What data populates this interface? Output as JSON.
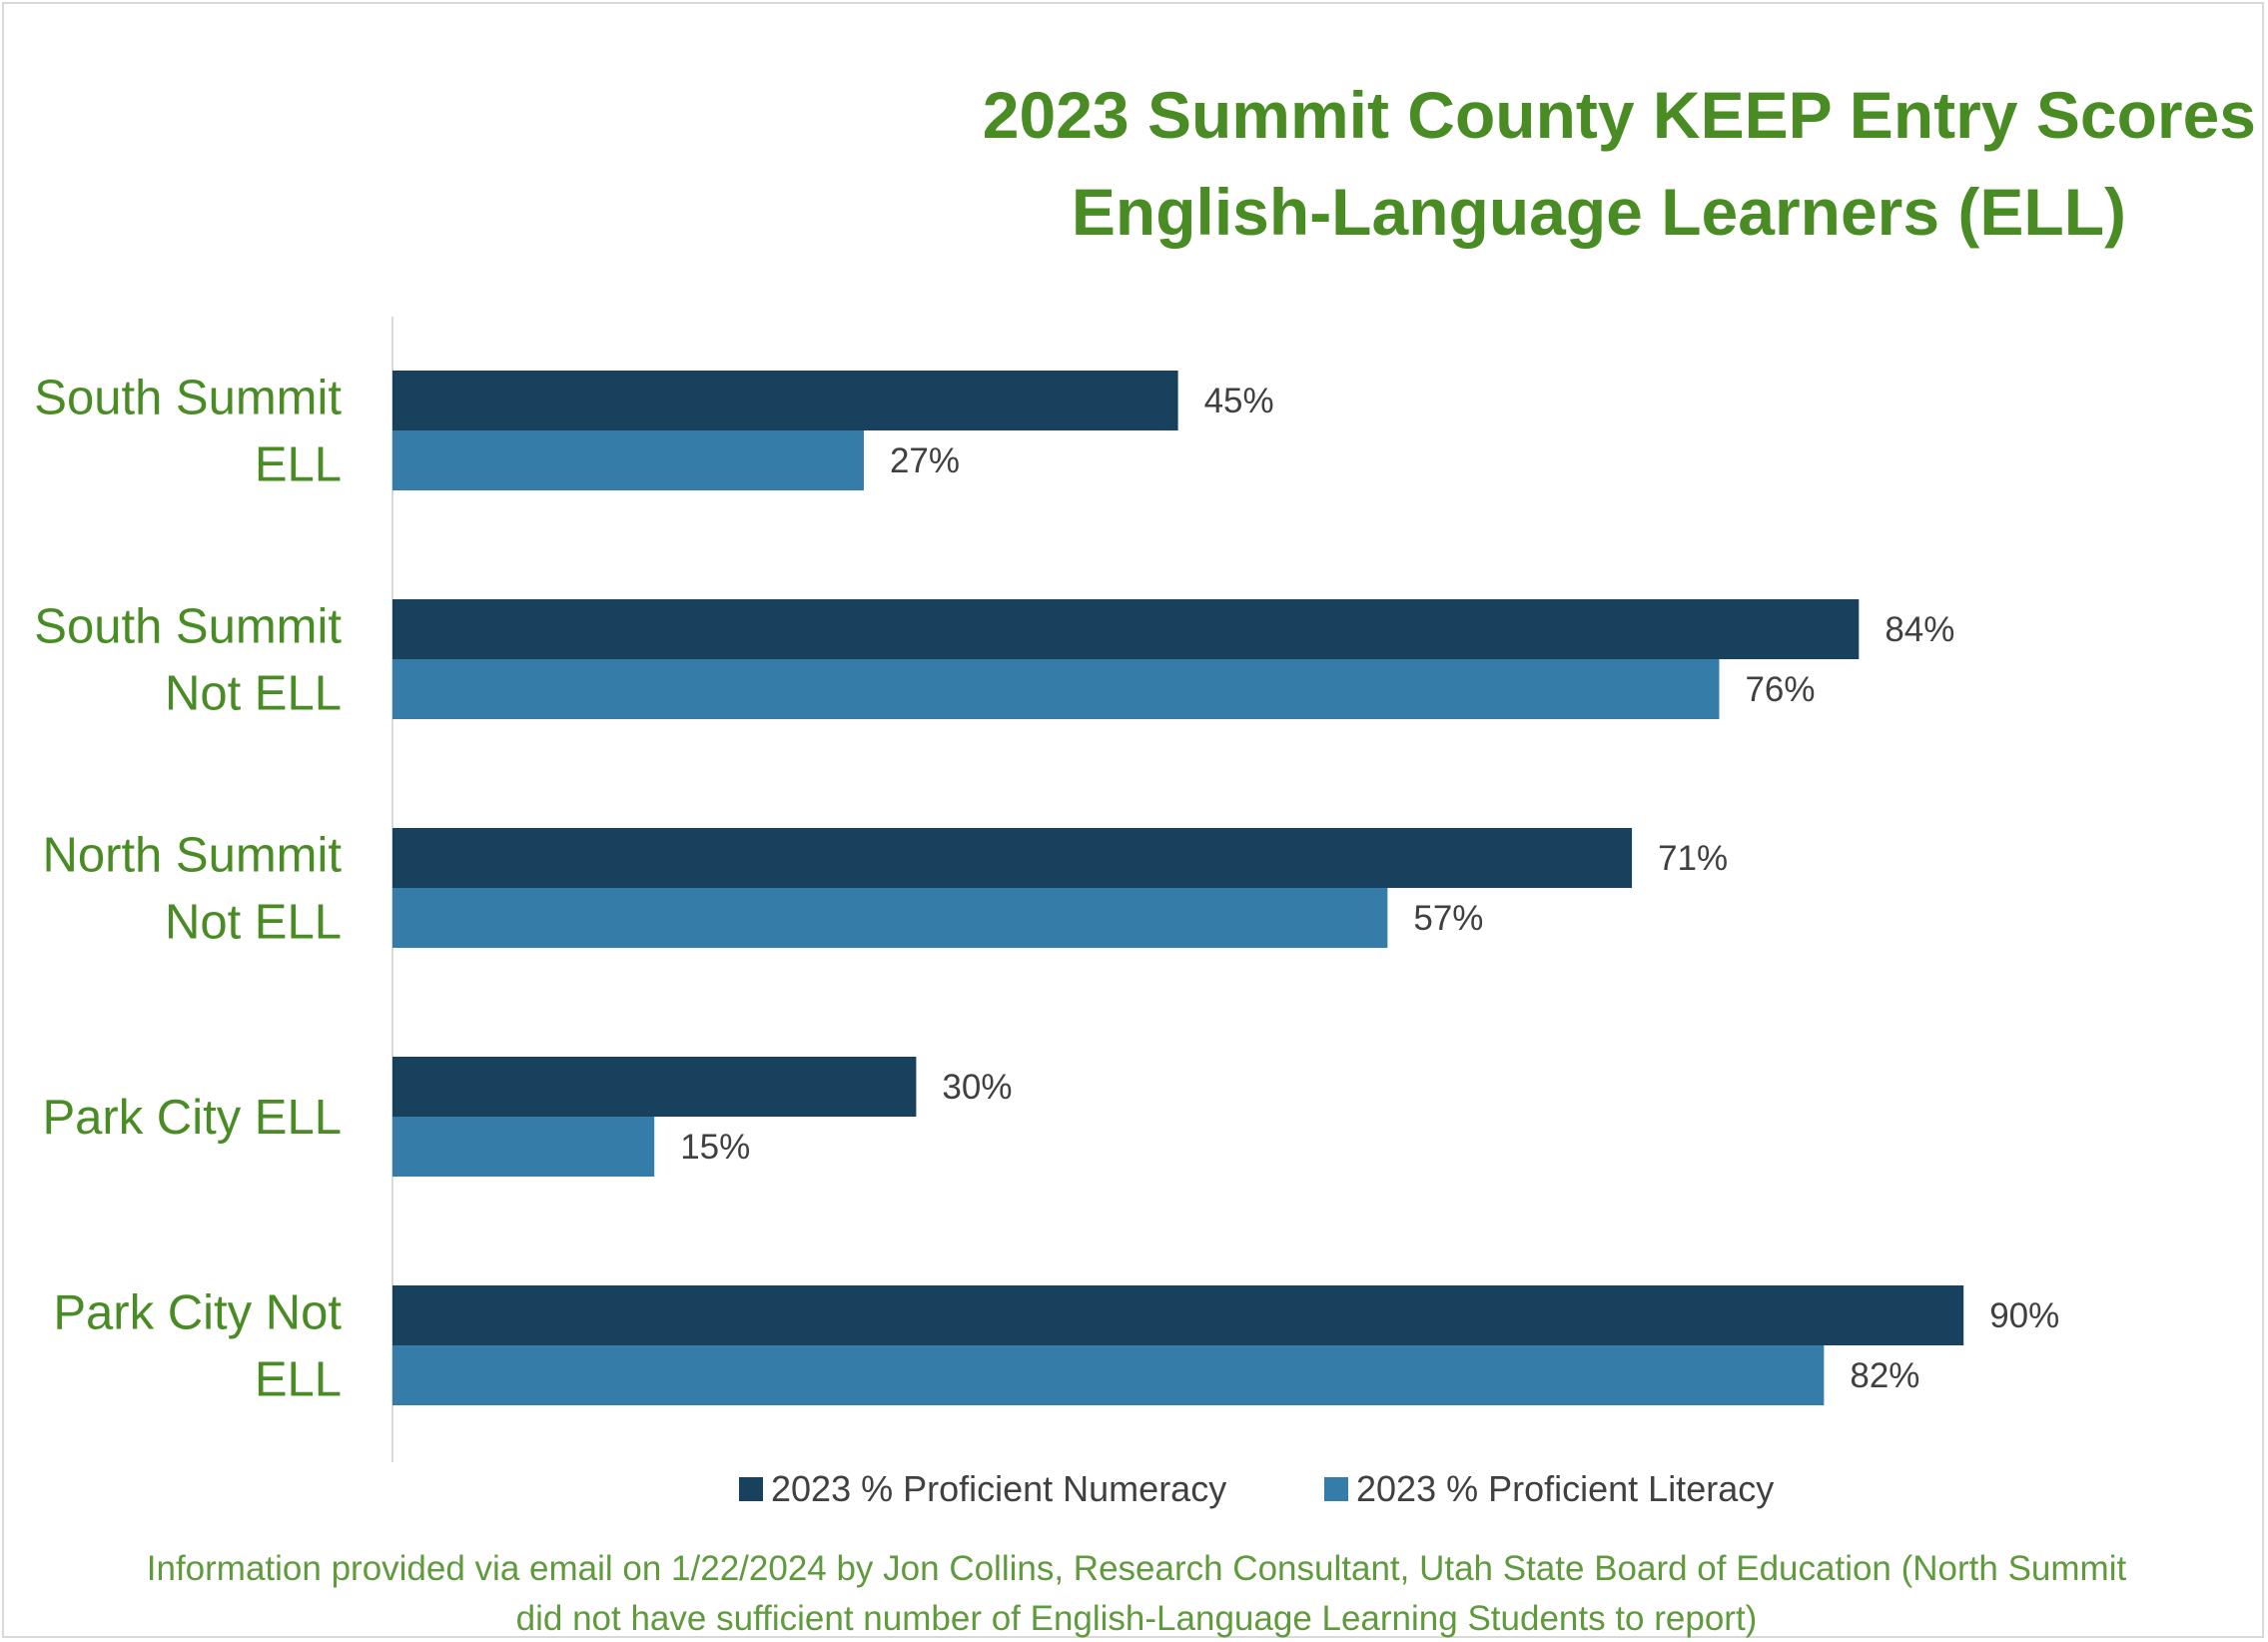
{
  "chart_data": {
    "type": "bar",
    "orientation": "horizontal",
    "title": "2023 Summit County KEEP Entry Scores",
    "subtitle": "English-Language Learners (ELL)",
    "categories": [
      [
        "South Summit",
        "ELL"
      ],
      [
        "South Summit",
        "Not ELL"
      ],
      [
        "North Summit",
        "Not ELL"
      ],
      [
        "Park City ELL"
      ],
      [
        "Park City Not",
        "ELL"
      ]
    ],
    "series": [
      {
        "name": "2023 % Proficient Numeracy",
        "color": "#17415c",
        "values": [
          45,
          84,
          71,
          30,
          90
        ],
        "labels": [
          "45%",
          "84%",
          "71%",
          "30%",
          "90%"
        ]
      },
      {
        "name": "2023 % Proficient Literacy",
        "color": "#357ca8",
        "values": [
          27,
          76,
          57,
          15,
          82
        ],
        "labels": [
          "27%",
          "76%",
          "57%",
          "15%",
          "82%"
        ]
      }
    ],
    "xlim": [
      0,
      100
    ],
    "grid": false,
    "legend_position": "bottom",
    "footnote": [
      "Information provided via email on 1/22/2024 by Jon Collins, Research Consultant, Utah State Board of Education (North Summit",
      "did not have sufficient number of English-Language Learning Students to report)"
    ]
  }
}
